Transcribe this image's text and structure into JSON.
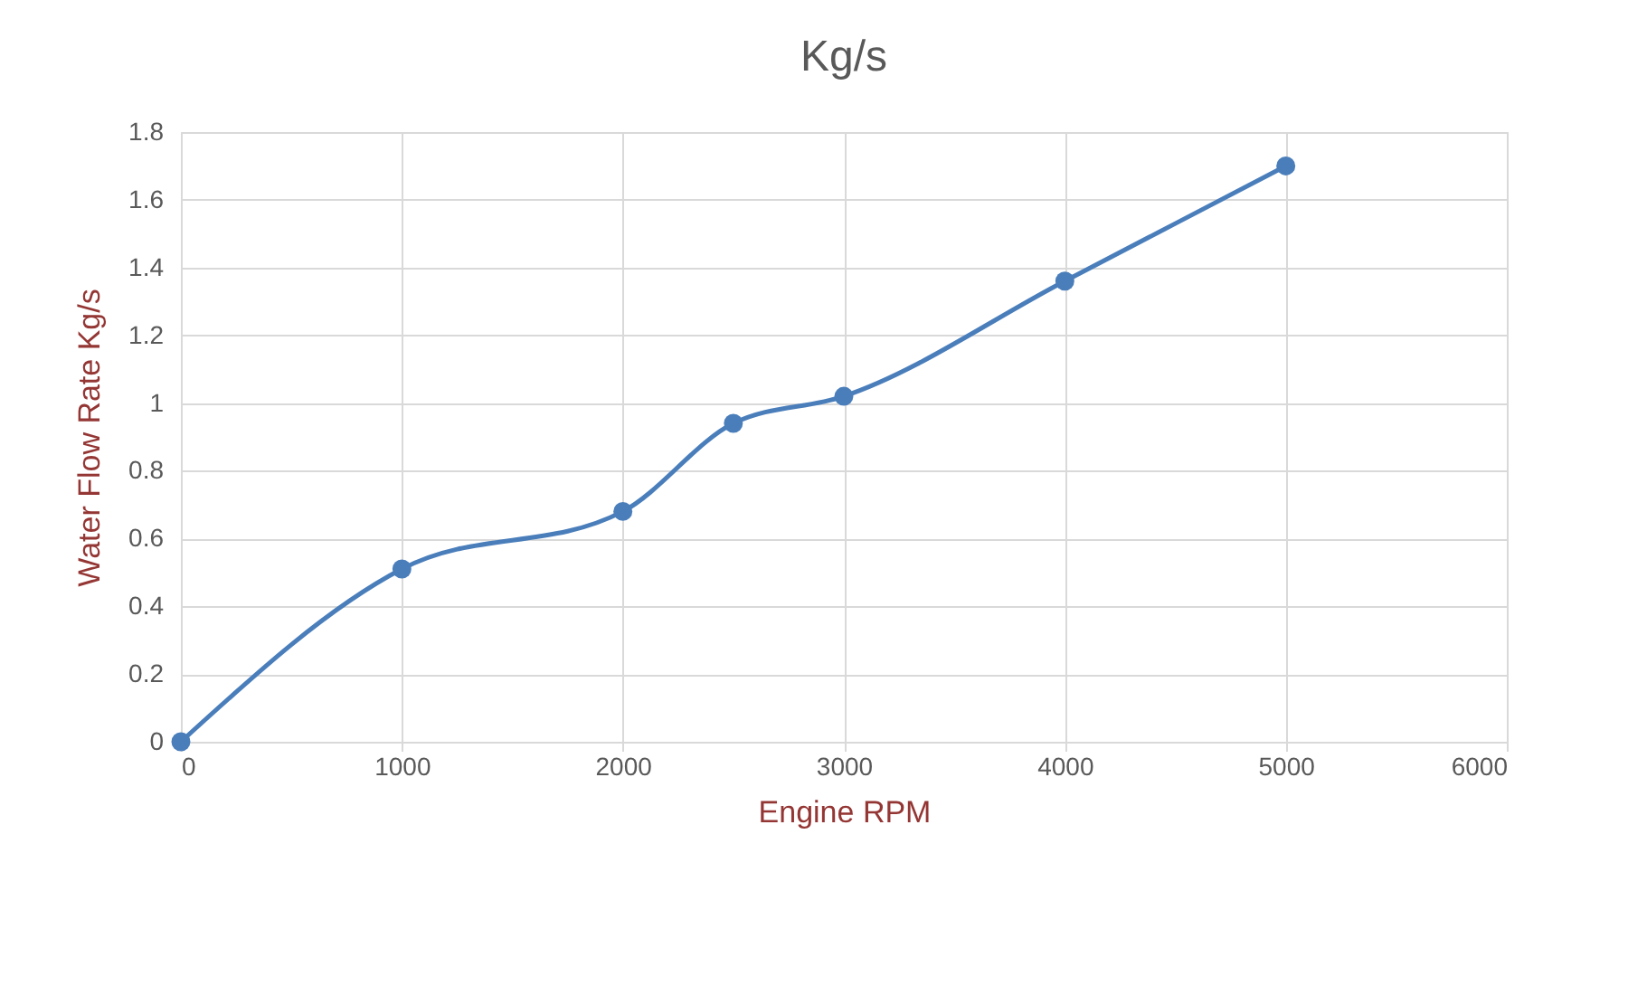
{
  "chart_data": {
    "type": "line",
    "title": "Kg/s",
    "xlabel": "Engine RPM",
    "ylabel": "Water Flow Rate Kg/s",
    "x": [
      0,
      1000,
      2000,
      2500,
      3000,
      4000,
      5000
    ],
    "series": [
      {
        "color": "#4a7ebb",
        "values": [
          0,
          0.51,
          0.68,
          0.94,
          1.02,
          1.36,
          1.7
        ]
      }
    ],
    "xlim": [
      0,
      6000
    ],
    "xticks": [
      0,
      1000,
      2000,
      3000,
      4000,
      5000,
      6000
    ],
    "ylim": [
      0,
      1.8
    ],
    "yticks": [
      0,
      0.2,
      0.4,
      0.6,
      0.8,
      1,
      1.2,
      1.4,
      1.6,
      1.8
    ],
    "grid": true,
    "marker": "circle",
    "line_style": "solid"
  }
}
